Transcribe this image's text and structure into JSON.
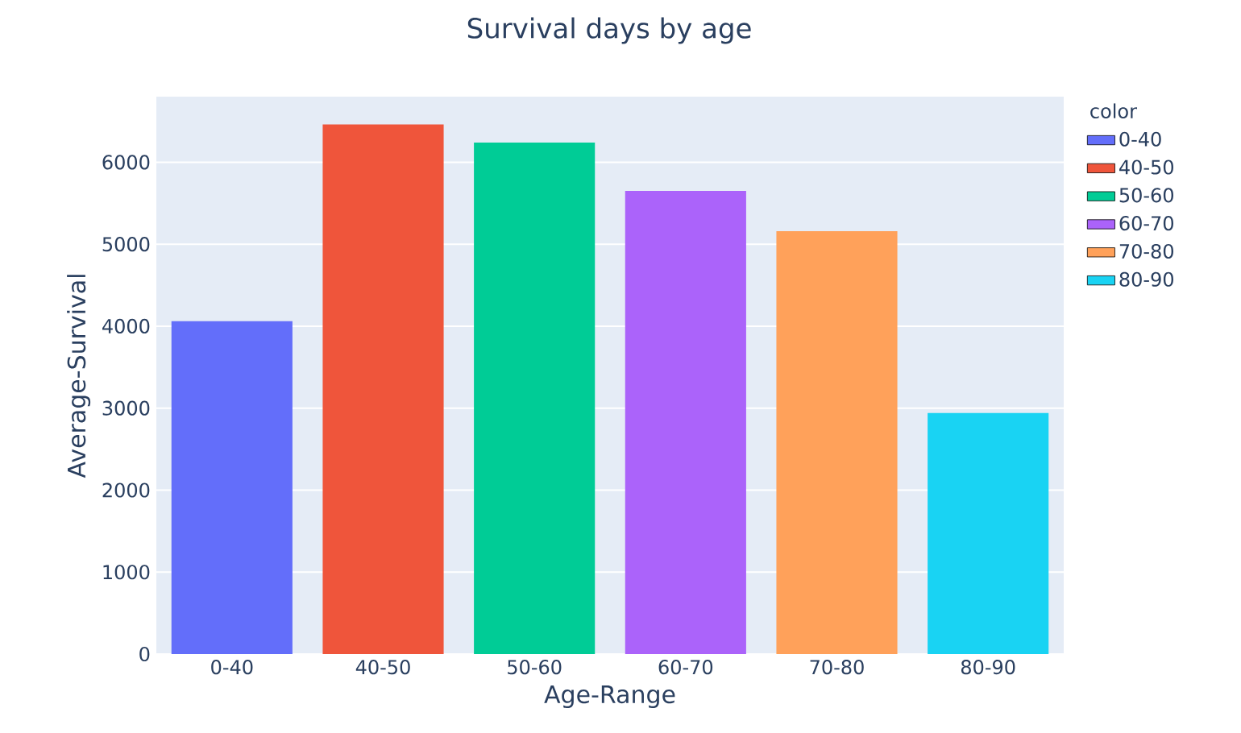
{
  "chart_data": {
    "type": "bar",
    "title": "Survival days by age",
    "xlabel": "Age-Range",
    "ylabel": "Average-Survival",
    "legend_title": "color",
    "categories": [
      "0-40",
      "40-50",
      "50-60",
      "60-70",
      "70-80",
      "80-90"
    ],
    "series": [
      {
        "name": "0-40",
        "color": "#636efa",
        "values": [
          4060,
          null,
          null,
          null,
          null,
          null
        ]
      },
      {
        "name": "40-50",
        "color": "#ef553b",
        "values": [
          null,
          6460,
          null,
          null,
          null,
          null
        ]
      },
      {
        "name": "50-60",
        "color": "#00cc96",
        "values": [
          null,
          null,
          6240,
          null,
          null,
          null
        ]
      },
      {
        "name": "60-70",
        "color": "#ab63fa",
        "values": [
          null,
          null,
          null,
          5650,
          null,
          null
        ]
      },
      {
        "name": "70-80",
        "color": "#ffa15a",
        "values": [
          null,
          null,
          null,
          null,
          5160,
          null
        ]
      },
      {
        "name": "80-90",
        "color": "#19d3f3",
        "values": [
          null,
          null,
          null,
          null,
          null,
          2940
        ]
      }
    ],
    "ylim": [
      0,
      6800
    ],
    "yticks": [
      0,
      1000,
      2000,
      3000,
      4000,
      5000,
      6000
    ],
    "grid": "y",
    "legend": "top right"
  }
}
